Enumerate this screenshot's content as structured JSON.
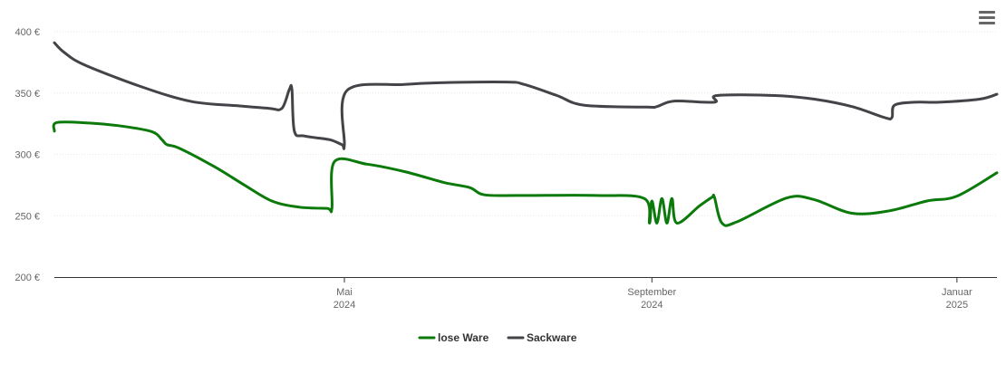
{
  "chart_data": {
    "type": "line",
    "title": "",
    "xlabel": "",
    "ylabel": "",
    "ylim": [
      200,
      400
    ],
    "xlim": [
      "2024-01-06",
      "2025-01-17"
    ],
    "y_ticks": [
      {
        "value": 200,
        "label": "200 €"
      },
      {
        "value": 250,
        "label": "250 €"
      },
      {
        "value": 300,
        "label": "300 €"
      },
      {
        "value": 350,
        "label": "350 €"
      },
      {
        "value": 400,
        "label": "400 €"
      }
    ],
    "x_ticks": [
      {
        "date": "2024-05-01",
        "line1": "Mai",
        "line2": "2024"
      },
      {
        "date": "2024-09-01",
        "line1": "September",
        "line2": "2024"
      },
      {
        "date": "2025-01-01",
        "line1": "Januar",
        "line2": "2025"
      }
    ],
    "grid": "horizontal",
    "legend_position": "bottom-center",
    "series": [
      {
        "name": "lose Ware",
        "color": "#0b7a0b",
        "points": [
          [
            "2024-01-06",
            319
          ],
          [
            "2024-01-07",
            326
          ],
          [
            "2024-01-20",
            325.5
          ],
          [
            "2024-02-02",
            323
          ],
          [
            "2024-02-14",
            318.5
          ],
          [
            "2024-02-18",
            312
          ],
          [
            "2024-02-20",
            308
          ],
          [
            "2024-02-25",
            305
          ],
          [
            "2024-03-10",
            290
          ],
          [
            "2024-03-22",
            275
          ],
          [
            "2024-04-02",
            262
          ],
          [
            "2024-04-13",
            257
          ],
          [
            "2024-04-24",
            256
          ],
          [
            "2024-04-26",
            256
          ],
          [
            "2024-04-27",
            294
          ],
          [
            "2024-05-10",
            292
          ],
          [
            "2024-05-25",
            286
          ],
          [
            "2024-06-10",
            277
          ],
          [
            "2024-06-20",
            273
          ],
          [
            "2024-06-26",
            267
          ],
          [
            "2024-07-10",
            266.5
          ],
          [
            "2024-08-10",
            266.5
          ],
          [
            "2024-08-29",
            264
          ],
          [
            "2024-08-31",
            244
          ],
          [
            "2024-09-01",
            262
          ],
          [
            "2024-09-03",
            244
          ],
          [
            "2024-09-05",
            264
          ],
          [
            "2024-09-07",
            244
          ],
          [
            "2024-09-09",
            264
          ],
          [
            "2024-09-11",
            244
          ],
          [
            "2024-09-20",
            258
          ],
          [
            "2024-09-25",
            265
          ],
          [
            "2024-09-26",
            265
          ],
          [
            "2024-09-29",
            244
          ],
          [
            "2024-10-05",
            245
          ],
          [
            "2024-10-25",
            264.5
          ],
          [
            "2024-11-05",
            263
          ],
          [
            "2024-11-20",
            252
          ],
          [
            "2024-12-05",
            254
          ],
          [
            "2024-12-20",
            262
          ],
          [
            "2025-01-01",
            266
          ],
          [
            "2025-01-17",
            285
          ]
        ]
      },
      {
        "name": "Sackware",
        "color": "#434348",
        "points": [
          [
            "2024-01-06",
            391
          ],
          [
            "2024-01-10",
            383
          ],
          [
            "2024-01-18",
            373
          ],
          [
            "2024-02-10",
            355
          ],
          [
            "2024-03-01",
            343
          ],
          [
            "2024-03-20",
            339.5
          ],
          [
            "2024-04-01",
            337.5
          ],
          [
            "2024-04-06",
            337.5
          ],
          [
            "2024-04-09",
            353
          ],
          [
            "2024-04-10",
            353
          ],
          [
            "2024-04-11",
            319
          ],
          [
            "2024-04-15",
            315
          ],
          [
            "2024-04-25",
            312
          ],
          [
            "2024-04-30",
            308
          ],
          [
            "2024-05-01",
            308
          ],
          [
            "2024-05-02",
            352
          ],
          [
            "2024-05-25",
            357
          ],
          [
            "2024-06-10",
            358.5
          ],
          [
            "2024-07-05",
            359
          ],
          [
            "2024-07-12",
            357
          ],
          [
            "2024-07-25",
            348
          ],
          [
            "2024-08-05",
            340
          ],
          [
            "2024-08-30",
            338.5
          ],
          [
            "2024-09-03",
            339
          ],
          [
            "2024-09-10",
            343.5
          ],
          [
            "2024-09-26",
            342.5
          ],
          [
            "2024-09-27",
            348
          ],
          [
            "2024-10-20",
            348
          ],
          [
            "2024-11-05",
            345
          ],
          [
            "2024-11-20",
            339
          ],
          [
            "2024-12-03",
            330
          ],
          [
            "2024-12-06",
            330
          ],
          [
            "2024-12-07",
            340
          ],
          [
            "2024-12-15",
            342.5
          ],
          [
            "2024-12-25",
            342.5
          ],
          [
            "2025-01-10",
            345
          ],
          [
            "2025-01-17",
            349
          ]
        ]
      }
    ]
  }
}
